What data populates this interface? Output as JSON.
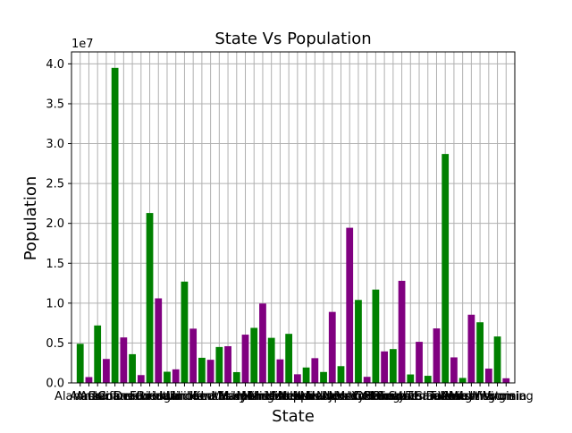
{
  "colors": {
    "bar_a": "#008000",
    "bar_b": "#800080",
    "grid": "#b0b0b0",
    "axis": "#000000"
  },
  "chart_data": {
    "type": "bar",
    "title": "State Vs Population",
    "xlabel": "State",
    "ylabel": "Population",
    "y_offset_label": "1e7",
    "ylim": [
      0,
      41500000
    ],
    "y_ticks": [
      0,
      5000000,
      10000000,
      15000000,
      20000000,
      25000000,
      30000000,
      35000000,
      40000000
    ],
    "y_tick_labels": [
      "0.0",
      "0.5",
      "1.0",
      "1.5",
      "2.0",
      "2.5",
      "3.0",
      "3.5",
      "4.0"
    ],
    "grid": true,
    "bar_colors": "alternating green / purple",
    "categories": [
      "Alabama",
      "Alaska",
      "Arizona",
      "Arkansas",
      "California",
      "Colorado",
      "Connecticut",
      "Delaware",
      "Florida",
      "Georgia",
      "Hawaii",
      "Idaho",
      "Illinois",
      "Indiana",
      "Iowa",
      "Kansas",
      "Kentucky",
      "Louisiana",
      "Maine",
      "Maryland",
      "Massachusetts",
      "Michigan",
      "Minnesota",
      "Mississippi",
      "Missouri",
      "Montana",
      "Nebraska",
      "Nevada",
      "New Hampshire",
      "New Jersey",
      "New Mexico",
      "New York",
      "North Carolina",
      "North Dakota",
      "Ohio",
      "Oklahoma",
      "Oregon",
      "Pennsylvania",
      "Rhode Island",
      "South Carolina",
      "South Dakota",
      "Tennessee",
      "Texas",
      "Utah",
      "Vermont",
      "Virginia",
      "Washington",
      "West Virginia",
      "Wisconsin",
      "Wyoming"
    ],
    "values": [
      4900000,
      730000,
      7200000,
      3000000,
      39500000,
      5700000,
      3600000,
      980000,
      21300000,
      10600000,
      1400000,
      1700000,
      12700000,
      6800000,
      3150000,
      2900000,
      4500000,
      4600000,
      1350000,
      6050000,
      6900000,
      9950000,
      5650000,
      2950000,
      6150000,
      1080000,
      1930000,
      3100000,
      1370000,
      8900000,
      2100000,
      19450000,
      10400000,
      760000,
      11700000,
      3950000,
      4240000,
      12800000,
      1060000,
      5150000,
      890000,
      6830000,
      28700000,
      3200000,
      620000,
      8550000,
      7600000,
      1790000,
      5820000,
      580000
    ]
  }
}
